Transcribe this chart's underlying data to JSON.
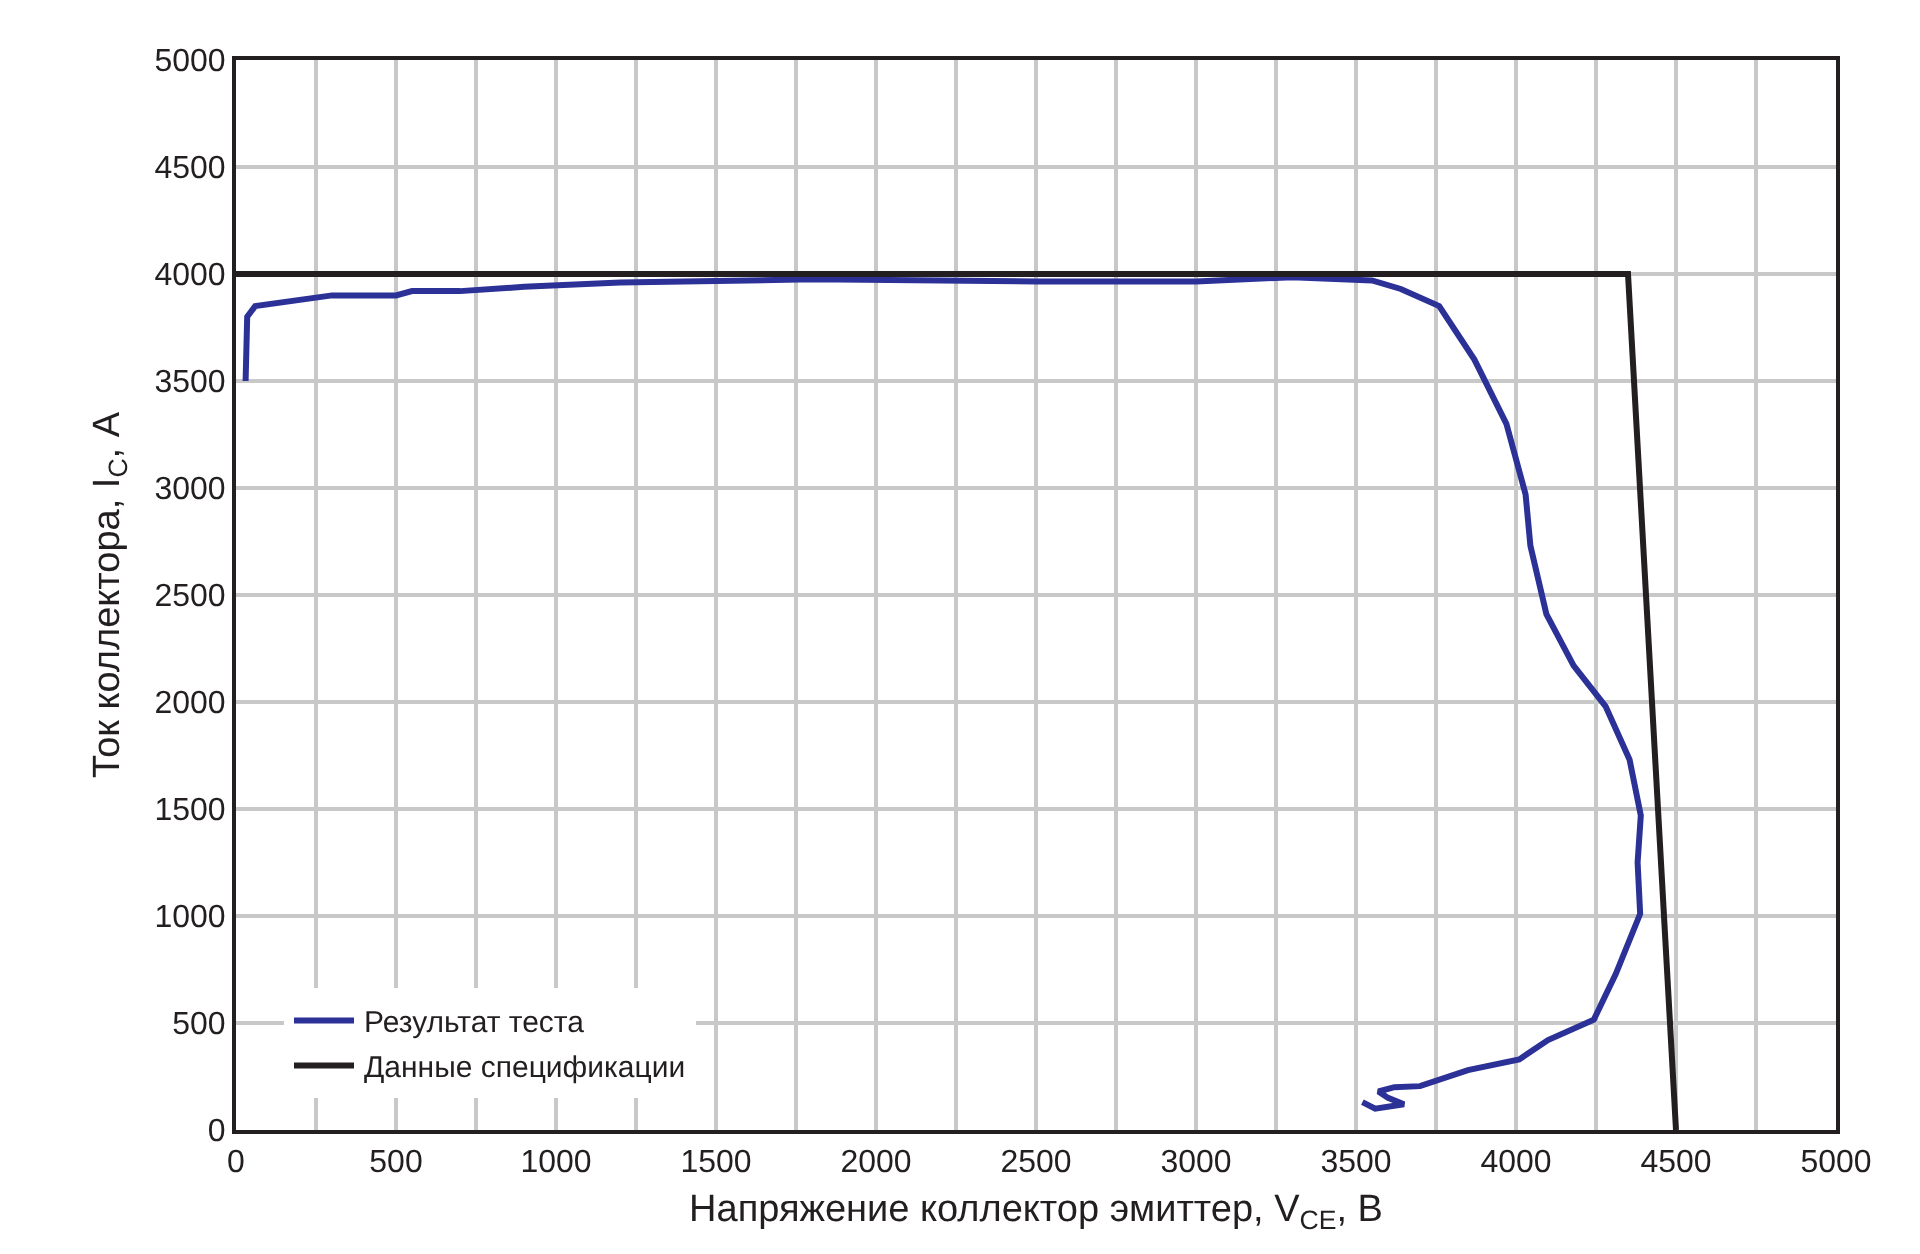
{
  "chart_data": {
    "type": "line",
    "xlabel": "Напряжение коллектор эмиттер, V$_{CE}$, В",
    "ylabel": "Ток коллектора, I$_{C}$, А",
    "xlim": [
      0,
      5000
    ],
    "ylim": [
      0,
      5000
    ],
    "xticks": [
      0,
      {
        "value": 250,
        "label": null
      },
      500,
      {
        "value": 750,
        "label": null
      },
      1000,
      {
        "value": 1250,
        "label": null
      },
      1500,
      {
        "value": 1750,
        "label": null
      },
      2000,
      {
        "value": 2250,
        "label": null
      },
      2500,
      {
        "value": 2750,
        "label": null
      },
      3000,
      {
        "value": 3250,
        "label": null
      },
      3500,
      {
        "value": 3750,
        "label": null
      },
      4000,
      {
        "value": 4250,
        "label": null
      },
      4500,
      {
        "value": 4750,
        "label": null
      },
      5000
    ],
    "yticks": [
      0,
      500,
      1000,
      1500,
      2000,
      2500,
      3000,
      3500,
      4000,
      4500,
      5000
    ],
    "grid": true,
    "legend": "bottom left",
    "marker": "none",
    "line_style": "solid",
    "series": [
      {
        "name": "Результат теста",
        "color": "#2b3196",
        "x": [
          30,
          35,
          60,
          300,
          500,
          550,
          700,
          900,
          1200,
          1800,
          2500,
          3000,
          3300,
          3550,
          3640,
          3760,
          3870,
          3970,
          4030,
          4045,
          4095,
          4180,
          4280,
          4355,
          4390,
          4380,
          4388,
          4312,
          4243,
          4100,
          4010,
          3850,
          3700,
          3620,
          3570,
          3600,
          3650,
          3560,
          3520
        ],
        "values": [
          3500,
          3800,
          3850,
          3900,
          3900,
          3920,
          3920,
          3940,
          3960,
          3975,
          3965,
          3965,
          3985,
          3970,
          3930,
          3850,
          3600,
          3300,
          2970,
          2730,
          2410,
          2170,
          1980,
          1730,
          1470,
          1250,
          1010,
          730,
          515,
          420,
          330,
          280,
          205,
          200,
          180,
          150,
          120,
          100,
          130
        ]
      },
      {
        "name": "Данные спецификации",
        "color": "#231f20",
        "x": [
          0,
          4350,
          4500
        ],
        "values": [
          4000,
          4000,
          0
        ]
      }
    ]
  }
}
